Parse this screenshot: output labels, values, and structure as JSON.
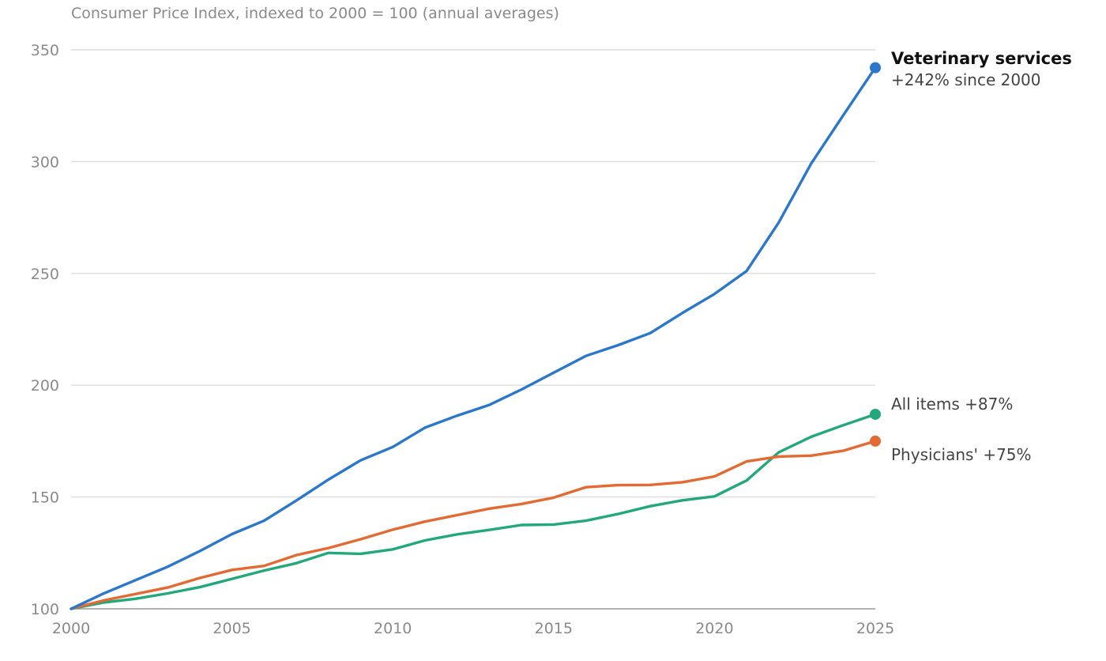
{
  "chart_data": {
    "type": "line",
    "title": "",
    "subtitle": "Consumer Price Index, indexed to 2000 = 100 (annual averages)",
    "xlabel": "",
    "ylabel": "",
    "xlim": [
      2000,
      2025
    ],
    "ylim": [
      100,
      350
    ],
    "x_ticks": [
      "2000",
      "2005",
      "2010",
      "2015",
      "2020",
      "2025"
    ],
    "y_ticks": [
      "100",
      "150",
      "200",
      "250",
      "300",
      "350"
    ],
    "grid": true,
    "legend": "direct-labels-right",
    "x": [
      2000,
      2001,
      2002,
      2003,
      2004,
      2005,
      2006,
      2007,
      2008,
      2009,
      2010,
      2011,
      2012,
      2013,
      2014,
      2015,
      2016,
      2017,
      2018,
      2019,
      2020,
      2021,
      2022,
      2023,
      2024,
      2025
    ],
    "series": [
      {
        "key": "vet",
        "color": "#2b77cc",
        "values": [
          100,
          106.8,
          112.8,
          118.8,
          125.8,
          133.4,
          139.4,
          148.4,
          157.8,
          166.4,
          172.4,
          181.0,
          186.4,
          191.2,
          198.1,
          205.6,
          213.1,
          217.9,
          223.3,
          232.3,
          240.8,
          251.1,
          272.8,
          299.0,
          320.7,
          342.0
        ],
        "label": "Veterinary services",
        "note": "+242% since 2000"
      },
      {
        "key": "all",
        "color": "#22a87a",
        "values": [
          100,
          102.8,
          104.5,
          106.9,
          109.7,
          113.4,
          117.1,
          120.4,
          125.0,
          124.6,
          126.6,
          130.6,
          133.3,
          135.3,
          137.5,
          137.7,
          139.4,
          142.4,
          145.9,
          148.5,
          150.3,
          157.4,
          170.0,
          176.9,
          182.1,
          187.0
        ],
        "label": "All items +87%"
      },
      {
        "key": "phys",
        "color": "#e36a33",
        "values": [
          100,
          103.7,
          106.6,
          109.5,
          113.8,
          117.4,
          119.2,
          124.0,
          127.2,
          131.1,
          135.4,
          139.0,
          141.9,
          144.8,
          146.9,
          149.7,
          154.4,
          155.3,
          155.4,
          156.6,
          159.2,
          165.9,
          168.1,
          168.5,
          170.7,
          175.0
        ],
        "label": "Physicians' +75%"
      }
    ]
  }
}
